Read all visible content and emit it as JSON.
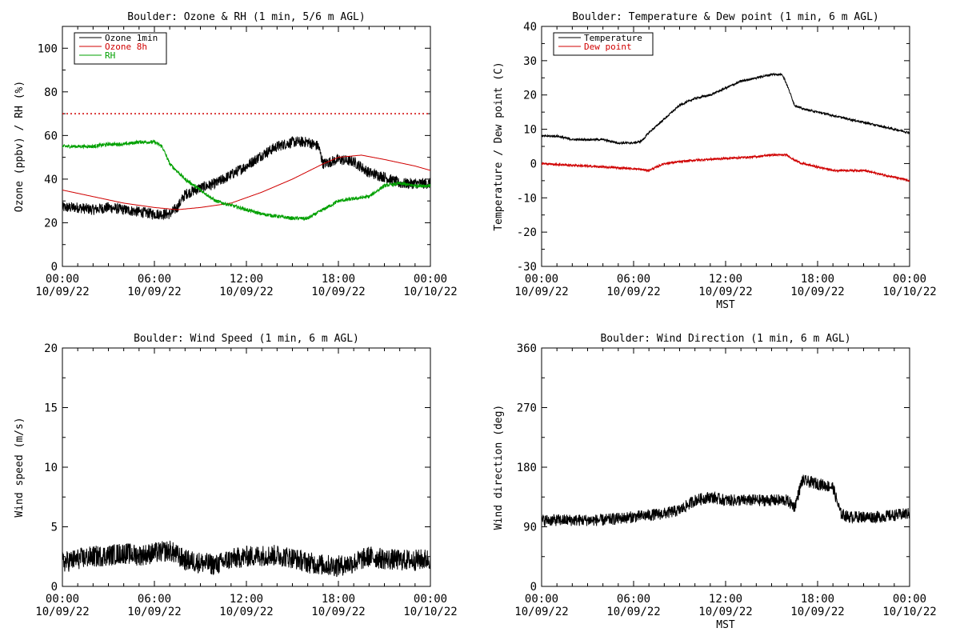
{
  "chart_data": [
    {
      "type": "line",
      "title": "Boulder: Ozone & RH (1 min, 5/6 m AGL)",
      "ylabel": "Ozone (ppbv) / RH (%)",
      "xlabel": "",
      "ylim": [
        0,
        110
      ],
      "yticks": [
        "0",
        "20",
        "40",
        "60",
        "80",
        "100"
      ],
      "ytick_values": [
        0,
        20,
        40,
        60,
        80,
        100
      ],
      "xlim_hours": [
        0,
        24
      ],
      "xticks": [
        {
          "time": "00:00",
          "date": "10/09/22"
        },
        {
          "time": "06:00",
          "date": "10/09/22"
        },
        {
          "time": "12:00",
          "date": "10/09/22"
        },
        {
          "time": "18:00",
          "date": "10/09/22"
        },
        {
          "time": "00:00",
          "date": "10/10/22"
        }
      ],
      "reference_line": {
        "y": 70,
        "color": "#d00000",
        "style": "dotted"
      },
      "legend": [
        "Ozone 1min",
        "Ozone 8h",
        "RH"
      ],
      "legend_position": "top-left",
      "series": [
        {
          "name": "Ozone 1min",
          "color": "#000000",
          "noise": 2.5,
          "points": [
            [
              0,
              27
            ],
            [
              1,
              27
            ],
            [
              2,
              26
            ],
            [
              3,
              27
            ],
            [
              4,
              26
            ],
            [
              5,
              25
            ],
            [
              6,
              24
            ],
            [
              7,
              24
            ],
            [
              7.5,
              27
            ],
            [
              8,
              33
            ],
            [
              9,
              36
            ],
            [
              10,
              38
            ],
            [
              11,
              42
            ],
            [
              12,
              46
            ],
            [
              13,
              51
            ],
            [
              14,
              55
            ],
            [
              15,
              57
            ],
            [
              16,
              57
            ],
            [
              16.7,
              55
            ],
            [
              17,
              47
            ],
            [
              18,
              49
            ],
            [
              19,
              48
            ],
            [
              20,
              43
            ],
            [
              21,
              41
            ],
            [
              22,
              38
            ],
            [
              23,
              38
            ],
            [
              24,
              38
            ]
          ]
        },
        {
          "name": "Ozone 8h",
          "color": "#d00000",
          "noise": 0,
          "points": [
            [
              0,
              35
            ],
            [
              2,
              32
            ],
            [
              4,
              29
            ],
            [
              6,
              27
            ],
            [
              7.5,
              26
            ],
            [
              9,
              27
            ],
            [
              11,
              29
            ],
            [
              13,
              34
            ],
            [
              15,
              40
            ],
            [
              17,
              47
            ],
            [
              18,
              50
            ],
            [
              19.5,
              51
            ],
            [
              21,
              49
            ],
            [
              23,
              46
            ],
            [
              24,
              44
            ]
          ]
        },
        {
          "name": "RH",
          "color": "#00a000",
          "noise": 0.8,
          "points": [
            [
              0,
              55
            ],
            [
              2,
              55
            ],
            [
              3,
              56
            ],
            [
              4,
              56
            ],
            [
              5,
              57
            ],
            [
              6,
              57
            ],
            [
              6.5,
              55
            ],
            [
              7,
              47
            ],
            [
              8,
              40
            ],
            [
              9,
              35
            ],
            [
              10,
              30
            ],
            [
              11,
              28
            ],
            [
              12,
              26
            ],
            [
              13,
              24
            ],
            [
              14,
              23
            ],
            [
              15,
              22
            ],
            [
              16,
              22
            ],
            [
              17,
              26
            ],
            [
              18,
              30
            ],
            [
              19,
              31
            ],
            [
              20,
              32
            ],
            [
              21,
              37
            ],
            [
              22,
              38
            ],
            [
              23,
              37
            ],
            [
              24,
              37
            ]
          ]
        }
      ]
    },
    {
      "type": "line",
      "title": "Boulder: Temperature & Dew point (1 min, 6 m AGL)",
      "ylabel": "Temperature / Dew point (C)",
      "xlabel": "MST",
      "ylim": [
        -30,
        40
      ],
      "yticks": [
        "-30",
        "-20",
        "-10",
        "0",
        "10",
        "20",
        "30",
        "40"
      ],
      "ytick_values": [
        -30,
        -20,
        -10,
        0,
        10,
        20,
        30,
        40
      ],
      "xlim_hours": [
        0,
        24
      ],
      "xticks": [
        {
          "time": "00:00",
          "date": "10/09/22"
        },
        {
          "time": "06:00",
          "date": "10/09/22"
        },
        {
          "time": "12:00",
          "date": "10/09/22"
        },
        {
          "time": "18:00",
          "date": "10/09/22"
        },
        {
          "time": "00:00",
          "date": "10/10/22"
        }
      ],
      "legend": [
        "Temperature",
        "Dew point"
      ],
      "legend_position": "top-left",
      "series": [
        {
          "name": "Temperature",
          "color": "#000000",
          "noise": 0.3,
          "points": [
            [
              0,
              8
            ],
            [
              1,
              8
            ],
            [
              2,
              7
            ],
            [
              3,
              7
            ],
            [
              4,
              7
            ],
            [
              5,
              6
            ],
            [
              6,
              6
            ],
            [
              6.5,
              6.5
            ],
            [
              7,
              9
            ],
            [
              8,
              13
            ],
            [
              9,
              17
            ],
            [
              10,
              19
            ],
            [
              11,
              20
            ],
            [
              12,
              22
            ],
            [
              13,
              24
            ],
            [
              14,
              25
            ],
            [
              15,
              26
            ],
            [
              15.7,
              26
            ],
            [
              16,
              23
            ],
            [
              16.5,
              17
            ],
            [
              17,
              16
            ],
            [
              18,
              15
            ],
            [
              19,
              14
            ],
            [
              20,
              13
            ],
            [
              21,
              12
            ],
            [
              22,
              11
            ],
            [
              23,
              10
            ],
            [
              24,
              9
            ]
          ]
        },
        {
          "name": "Dew point",
          "color": "#d00000",
          "noise": 0.3,
          "points": [
            [
              0,
              0
            ],
            [
              2,
              -0.5
            ],
            [
              4,
              -1
            ],
            [
              6,
              -1.5
            ],
            [
              7,
              -2
            ],
            [
              7.5,
              -1
            ],
            [
              8,
              0
            ],
            [
              10,
              1
            ],
            [
              12,
              1.5
            ],
            [
              14,
              2
            ],
            [
              15,
              2.5
            ],
            [
              16,
              2.5
            ],
            [
              16.5,
              1
            ],
            [
              17,
              0
            ],
            [
              18,
              -1
            ],
            [
              19,
              -2
            ],
            [
              20,
              -2
            ],
            [
              21,
              -2
            ],
            [
              22,
              -3
            ],
            [
              23,
              -4
            ],
            [
              24,
              -5
            ]
          ]
        }
      ]
    },
    {
      "type": "line",
      "title": "Boulder: Wind Speed (1 min, 6 m AGL)",
      "ylabel": "Wind speed (m/s)",
      "xlabel": "",
      "ylim": [
        0,
        20
      ],
      "yticks": [
        "0",
        "5",
        "10",
        "15",
        "20"
      ],
      "ytick_values": [
        0,
        5,
        10,
        15,
        20
      ],
      "xlim_hours": [
        0,
        24
      ],
      "xticks": [
        {
          "time": "00:00",
          "date": "10/09/22"
        },
        {
          "time": "06:00",
          "date": "10/09/22"
        },
        {
          "time": "12:00",
          "date": "10/09/22"
        },
        {
          "time": "18:00",
          "date": "10/09/22"
        },
        {
          "time": "00:00",
          "date": "10/10/22"
        }
      ],
      "legend": [],
      "series": [
        {
          "name": "",
          "color": "#000000",
          "noise": 0.9,
          "points": [
            [
              0,
              2
            ],
            [
              1,
              2.3
            ],
            [
              2,
              2.5
            ],
            [
              3,
              2.6
            ],
            [
              4,
              2.8
            ],
            [
              5,
              2.6
            ],
            [
              6,
              2.8
            ],
            [
              7,
              3.0
            ],
            [
              8,
              2.2
            ],
            [
              9,
              2.0
            ],
            [
              10,
              1.8
            ],
            [
              11,
              2.3
            ],
            [
              12,
              2.5
            ],
            [
              13,
              2.6
            ],
            [
              14,
              2.6
            ],
            [
              15,
              2.4
            ],
            [
              16,
              2.0
            ],
            [
              17,
              1.8
            ],
            [
              18,
              1.7
            ],
            [
              19,
              2.0
            ],
            [
              20,
              2.5
            ],
            [
              21,
              2.3
            ],
            [
              22,
              2.2
            ],
            [
              23,
              2.2
            ],
            [
              24,
              2.3
            ]
          ]
        }
      ]
    },
    {
      "type": "line",
      "title": "Boulder: Wind Direction (1 min, 6 m AGL)",
      "ylabel": "Wind direction (deg)",
      "xlabel": "MST",
      "ylim": [
        0,
        360
      ],
      "yticks": [
        "0",
        "90",
        "180",
        "270",
        "360"
      ],
      "ytick_values": [
        0,
        90,
        180,
        270,
        360
      ],
      "xlim_hours": [
        0,
        24
      ],
      "xticks": [
        {
          "time": "00:00",
          "date": "10/09/22"
        },
        {
          "time": "06:00",
          "date": "10/09/22"
        },
        {
          "time": "12:00",
          "date": "10/09/22"
        },
        {
          "time": "18:00",
          "date": "10/09/22"
        },
        {
          "time": "00:00",
          "date": "10/10/22"
        }
      ],
      "legend": [],
      "series": [
        {
          "name": "",
          "color": "#000000",
          "noise": 9,
          "points": [
            [
              0,
              100
            ],
            [
              2,
              100
            ],
            [
              4,
              100
            ],
            [
              6,
              105
            ],
            [
              8,
              110
            ],
            [
              9,
              115
            ],
            [
              10,
              130
            ],
            [
              11,
              135
            ],
            [
              12,
              130
            ],
            [
              13,
              130
            ],
            [
              14,
              130
            ],
            [
              15,
              130
            ],
            [
              16,
              130
            ],
            [
              16.5,
              120
            ],
            [
              17,
              160
            ],
            [
              18,
              155
            ],
            [
              19,
              150
            ],
            [
              19.5,
              110
            ],
            [
              20,
              105
            ],
            [
              22,
              105
            ],
            [
              24,
              110
            ]
          ]
        }
      ]
    }
  ]
}
